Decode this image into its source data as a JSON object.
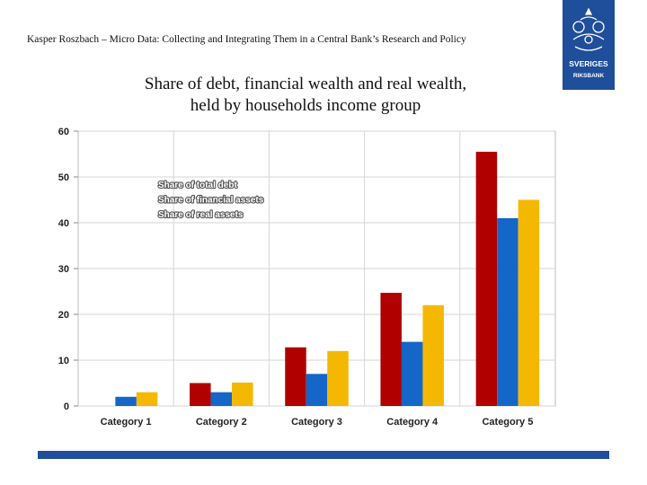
{
  "header": {
    "text": "Kasper Roszbach – Micro Data: Collecting and Integrating Them in a Central Bank’s Research and Policy"
  },
  "logo": {
    "icon": "sveriges-riksbank-crest-icon",
    "line1": "SVERIGES",
    "line2": "RIKSBANK"
  },
  "slide_title": {
    "line1": "Share of debt, financial wealth and real wealth,",
    "line2": "held by households income group"
  },
  "chart_data": {
    "type": "bar",
    "categories": [
      "Category 1",
      "Category 2",
      "Category 3",
      "Category 4",
      "Category 5"
    ],
    "series": [
      {
        "name": "Share of total debt",
        "color": "#b00000",
        "values": [
          0,
          5,
          12.8,
          24.7,
          55.5
        ]
      },
      {
        "name": "Share of financial assets",
        "color": "#1466c8",
        "values": [
          2,
          3,
          7,
          14,
          41
        ]
      },
      {
        "name": "Share of real assets",
        "color": "#f5b800",
        "values": [
          3,
          5.1,
          12,
          22,
          45
        ]
      }
    ],
    "ylim": [
      0,
      60
    ],
    "yticks": [
      0,
      10,
      20,
      30,
      40,
      50,
      60
    ],
    "grid": true,
    "legend_position": "top-left",
    "xlabel": "",
    "ylabel": ""
  },
  "colors": {
    "accent_bar": "#1f4e9a",
    "logo_blue": "#1f4e9a"
  }
}
